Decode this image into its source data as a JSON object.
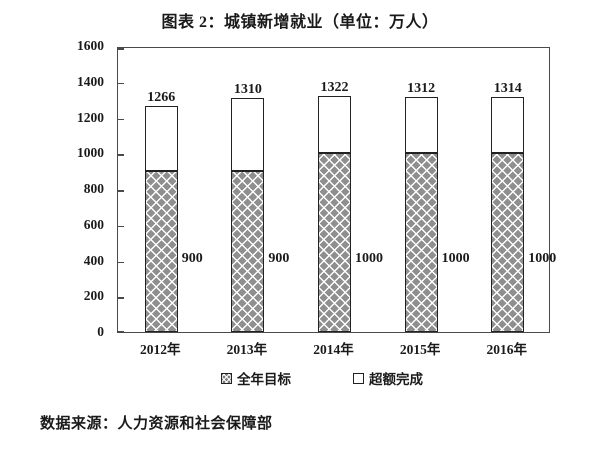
{
  "title": "图表 2：城镇新增就业（单位：万人）",
  "source_note": "数据来源：人力资源和社会保障部",
  "colors": {
    "hatch_gray": "#8f8f8f",
    "bar_border": "#222222",
    "frame": "#4a4a4a",
    "text": "#1a1a1a",
    "background": "#ffffff"
  },
  "chart_data": {
    "type": "bar",
    "stacked": true,
    "title": "图表 2：城镇新增就业（单位：万人）",
    "unit": "万人",
    "categories": [
      "2012年",
      "2013年",
      "2014年",
      "2015年",
      "2016年"
    ],
    "series": [
      {
        "name": "全年目标",
        "values": [
          900,
          900,
          1000,
          1000,
          1000
        ]
      },
      {
        "name": "超额完成",
        "values": [
          366,
          410,
          322,
          312,
          314
        ]
      }
    ],
    "totals": [
      1266,
      1310,
      1322,
      1312,
      1314
    ],
    "total_labels": [
      "1266",
      "1310",
      "1322",
      "1312",
      "1314"
    ],
    "target_value_labels": [
      "900",
      "900",
      "1000",
      "1000",
      "1000"
    ],
    "ylim": [
      0,
      1600
    ],
    "yticks": [
      0,
      200,
      400,
      600,
      800,
      1000,
      1200,
      1400,
      1600
    ],
    "grid": false,
    "legend_position": "bottom",
    "source": "数据来源：人力资源和社会保障部"
  }
}
